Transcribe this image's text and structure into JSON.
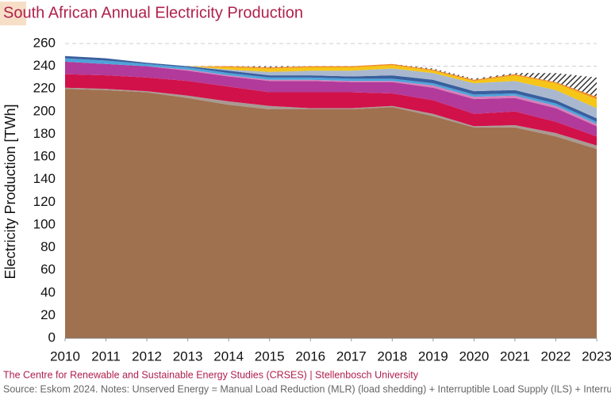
{
  "chart_data": {
    "type": "stacked-area",
    "title": "South African Annual Electricity Production",
    "y_label": "Electricity Production [TWh]",
    "footer": "The Centre for Renewable and Sustainable Energy Studies (CRSES) | Stellenbosch University",
    "source": "Source: Eskom 2024. Notes: Unserved Energy = Manual Load Reduction (MLR) (load shedding)  + Interruptible Load Supply (ILS) + Interru",
    "x": [
      2010,
      2011,
      2012,
      2013,
      2014,
      2015,
      2016,
      2017,
      2018,
      2019,
      2020,
      2021,
      2022,
      2023
    ],
    "xlim": [
      2010,
      2023
    ],
    "xticks": [
      2010,
      2011,
      2012,
      2013,
      2014,
      2015,
      2016,
      2017,
      2018,
      2019,
      2020,
      2021,
      2022,
      2023
    ],
    "ylim": [
      0,
      260
    ],
    "yticks": [
      0,
      20,
      40,
      60,
      80,
      100,
      120,
      140,
      160,
      180,
      200,
      220,
      240,
      260
    ],
    "grid": true,
    "series": [
      {
        "color": "#a0714f",
        "values": [
          220,
          219,
          217,
          212,
          206,
          202,
          202,
          202,
          204,
          196,
          186,
          186,
          178,
          167
        ]
      },
      {
        "color": "#a89a92",
        "values": [
          1,
          1,
          1,
          2,
          3,
          3,
          1,
          1,
          1,
          2,
          1,
          2,
          3,
          3
        ]
      },
      {
        "color": "#d1114a",
        "values": [
          12,
          12,
          12,
          13,
          13,
          12,
          14,
          14,
          11,
          12,
          11,
          12,
          10,
          8
        ]
      },
      {
        "color": "#b23a9a",
        "values": [
          11,
          10,
          10,
          9,
          9,
          10,
          10,
          9,
          10,
          11,
          13,
          12,
          12,
          9
        ]
      },
      {
        "color": "#d77fb9",
        "values": [
          0,
          0,
          0,
          1,
          1,
          1,
          1,
          1,
          1,
          2,
          2,
          2,
          2,
          2
        ]
      },
      {
        "color": "#4fa3d9",
        "values": [
          3,
          3,
          2,
          2,
          2,
          2,
          2,
          2,
          2,
          2,
          2,
          2,
          2,
          2
        ]
      },
      {
        "color": "#3a5f9e",
        "values": [
          2,
          2,
          1,
          1,
          2,
          2,
          2,
          2,
          3,
          3,
          3,
          3,
          3,
          3
        ]
      },
      {
        "color": "#a9b8cf",
        "values": [
          0,
          0,
          0,
          0,
          1,
          3,
          4,
          5,
          6,
          6,
          7,
          8,
          9,
          9
        ]
      },
      {
        "color": "#f5c518",
        "values": [
          0,
          0,
          0,
          0,
          2,
          3,
          3,
          3,
          3,
          2,
          2,
          5,
          6,
          8
        ]
      },
      {
        "color": "#f08a24",
        "values": [
          0,
          0,
          0,
          0,
          1,
          1,
          1,
          1,
          1,
          1,
          1,
          1,
          1,
          2
        ]
      },
      {
        "color": "#333333",
        "pattern": "hatch",
        "values": [
          0,
          0,
          0,
          0,
          0,
          1,
          0,
          0,
          0,
          1,
          1,
          1,
          8,
          17
        ]
      }
    ]
  }
}
